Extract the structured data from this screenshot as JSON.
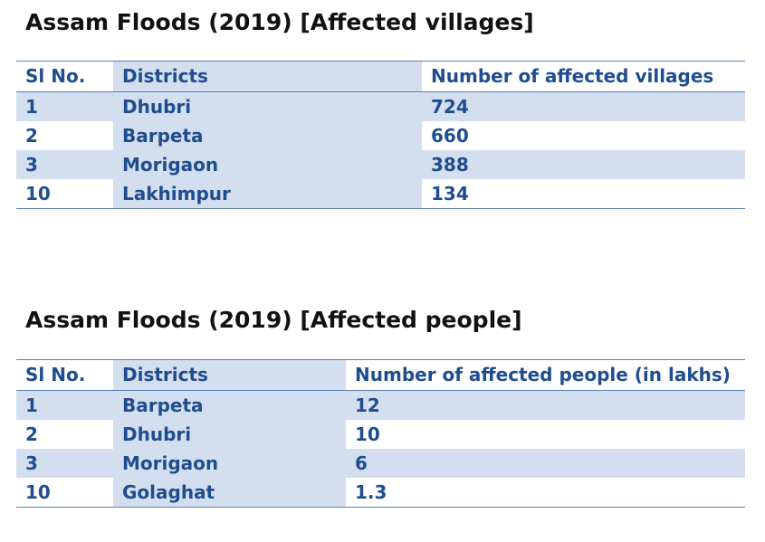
{
  "villages": {
    "title": "Assam Floods (2019) [Affected villages]",
    "headers": [
      "Sl No.",
      "Districts",
      "Number of affected villages"
    ],
    "rows": [
      [
        "1",
        "Dhubri",
        "724"
      ],
      [
        "2",
        "Barpeta",
        "660"
      ],
      [
        "3",
        "Morigaon",
        "388"
      ],
      [
        "10",
        "Lakhimpur",
        "134"
      ]
    ]
  },
  "people": {
    "title": "Assam Floods (2019) [Affected people]",
    "headers": [
      "Sl No.",
      "Districts",
      "Number of affected people (in lakhs)"
    ],
    "rows": [
      [
        "1",
        "Barpeta",
        "12"
      ],
      [
        "2",
        "Dhubri",
        "10"
      ],
      [
        "3",
        "Morigaon",
        "6"
      ],
      [
        "10",
        "Golaghat",
        "1.3"
      ]
    ]
  },
  "colors": {
    "text": "#1f4d8f",
    "band": "#d3dfee",
    "rule": "#5a81b3",
    "title": "#111111"
  }
}
